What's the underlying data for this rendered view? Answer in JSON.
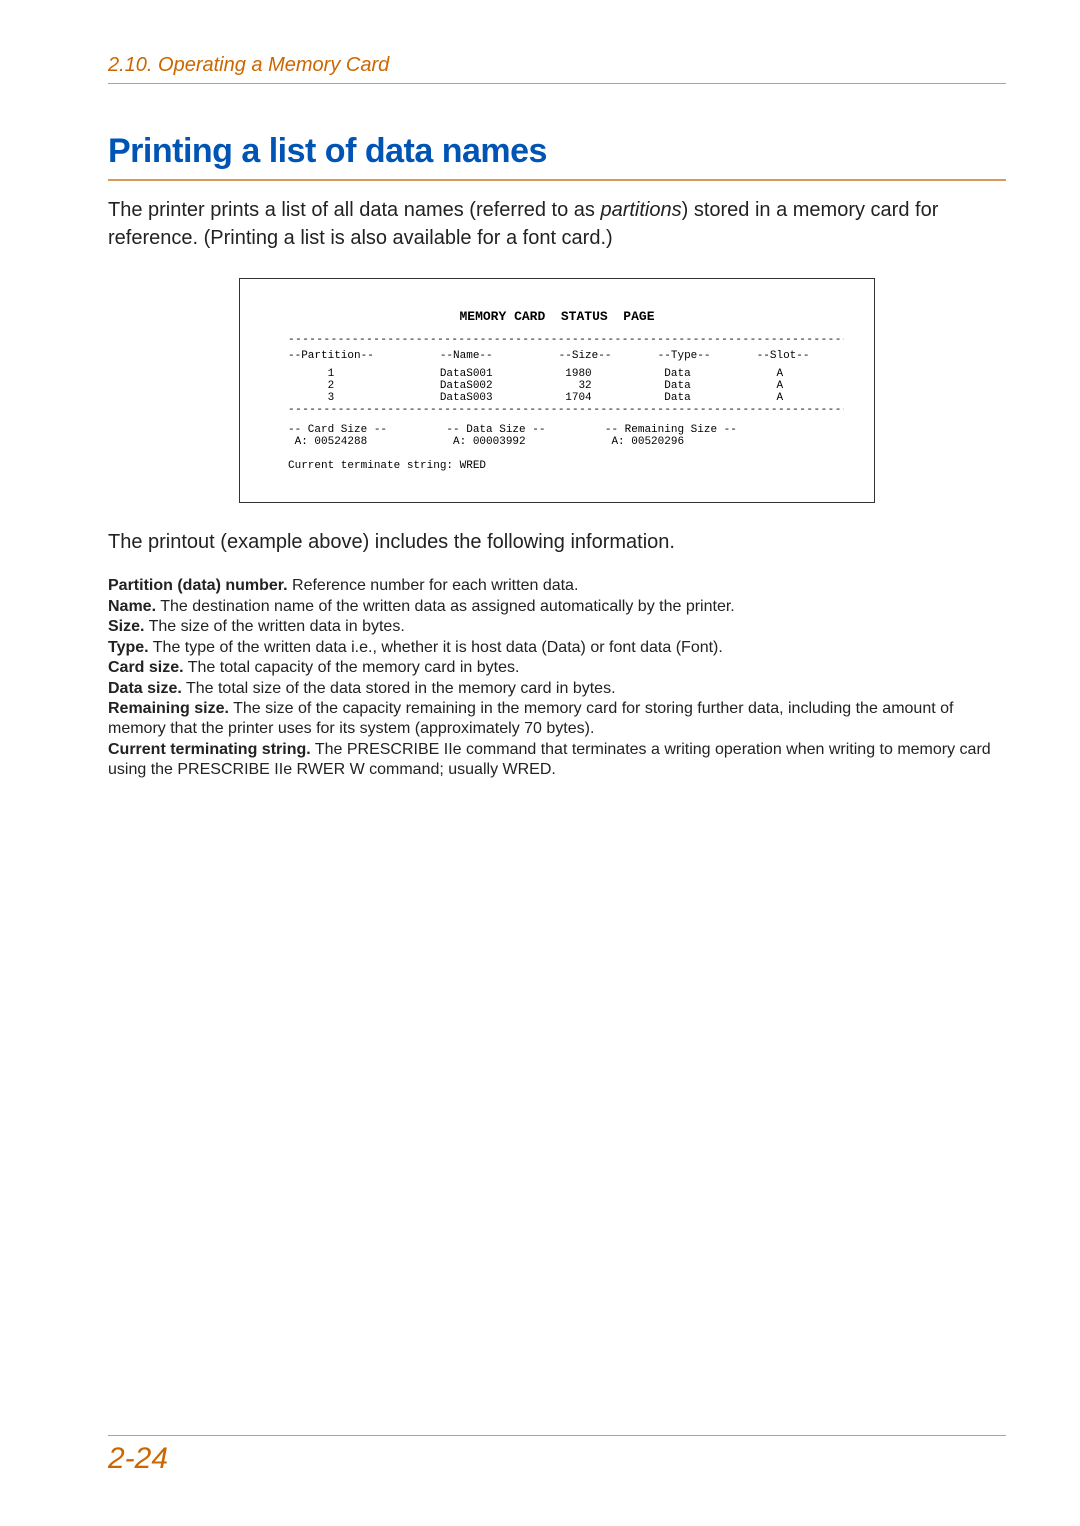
{
  "header": {
    "section": "2.10. Operating a Memory Card"
  },
  "title": "Printing a list of data names",
  "lead_prefix": "The printer prints a list of all data names (referred to as ",
  "lead_em": "partitions",
  "lead_suffix": ") stored in a memory card for reference. (Printing a list is also available for a font card.)",
  "printout": {
    "title": "MEMORY CARD  STATUS  PAGE",
    "dash": "----------------------------------------------------------------------------------------",
    "header_row": "--Partition--          --Name--          --Size--       --Type--       --Slot--",
    "rows": [
      "      1                DataS001           1980           Data             A      ",
      "      2                DataS002             32           Data             A      ",
      "      3                DataS003           1704           Data             A      "
    ],
    "sizes_l1": "-- Card Size --         -- Data Size --         -- Remaining Size --",
    "sizes_l2": " A: 00524288             A: 00003992             A: 00520296",
    "term": "Current terminate string: WRED"
  },
  "caption": "The printout (example above) includes the following information.",
  "defs": [
    {
      "b": "Partition (data) number.",
      "t": " Reference number for each written data."
    },
    {
      "b": "Name.",
      "t": " The destination name of the written data as assigned automatically by the printer."
    },
    {
      "b": "Size.",
      "t": " The size of the written data in bytes."
    },
    {
      "b": "Type.",
      "t": " The type of the written data i.e., whether it is host data (Data) or font data (Font)."
    },
    {
      "b": "Card size.",
      "t": " The total capacity of the memory card in bytes."
    },
    {
      "b": "Data size.",
      "t": " The total size of the data stored in the memory card in bytes."
    },
    {
      "b": "Remaining size.",
      "t": " The size of the capacity remaining in the memory card for storing further data, including the amount of memory that the printer uses for its system (approximately 70 bytes)."
    },
    {
      "b": "Current terminating string.",
      "t": " The PRESCRIBE IIe command that terminates a writing operation when writing to memory card using the PRESCRIBE IIe RWER W command; usually WRED."
    }
  ],
  "footer": {
    "page": "2-24"
  }
}
